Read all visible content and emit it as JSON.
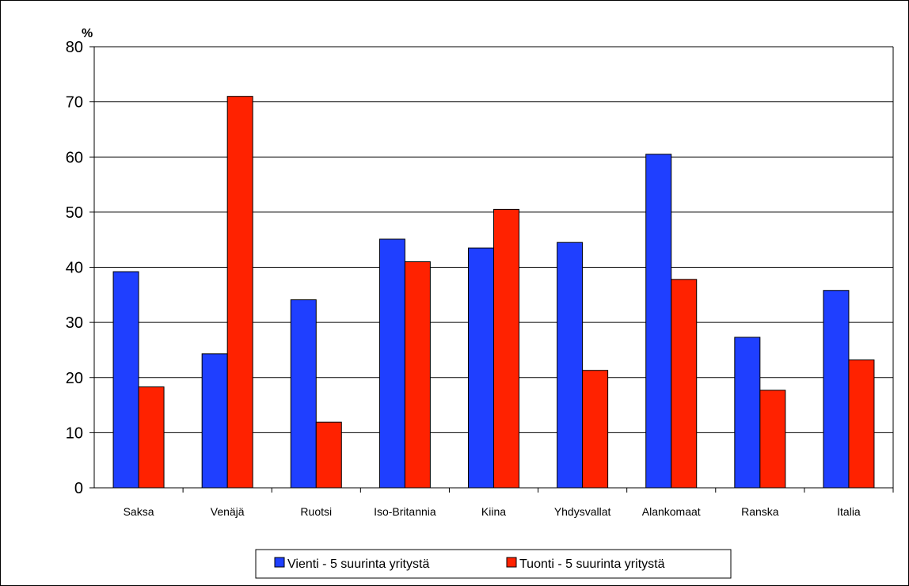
{
  "chart_data": {
    "type": "bar",
    "y_unit_label": "%",
    "ylim": [
      0,
      80
    ],
    "yticks": [
      0,
      10,
      20,
      30,
      40,
      50,
      60,
      70,
      80
    ],
    "grid": true,
    "legend_position": "bottom",
    "categories": [
      "Saksa",
      "Venäjä",
      "Ruotsi",
      "Iso-Britannia",
      "Kiina",
      "Yhdysvallat",
      "Alankomaat",
      "Ranska",
      "Italia"
    ],
    "series": [
      {
        "name": "Vienti - 5 suurinta yritystä",
        "color": "#1f3fff",
        "values": [
          39.2,
          24.3,
          34.1,
          45.1,
          43.5,
          44.5,
          60.5,
          27.3,
          35.8
        ]
      },
      {
        "name": "Tuonti - 5 suurinta yritystä",
        "color": "#ff2200",
        "values": [
          18.3,
          71.0,
          11.9,
          41.0,
          50.5,
          21.3,
          37.8,
          17.7,
          23.2
        ]
      }
    ]
  }
}
